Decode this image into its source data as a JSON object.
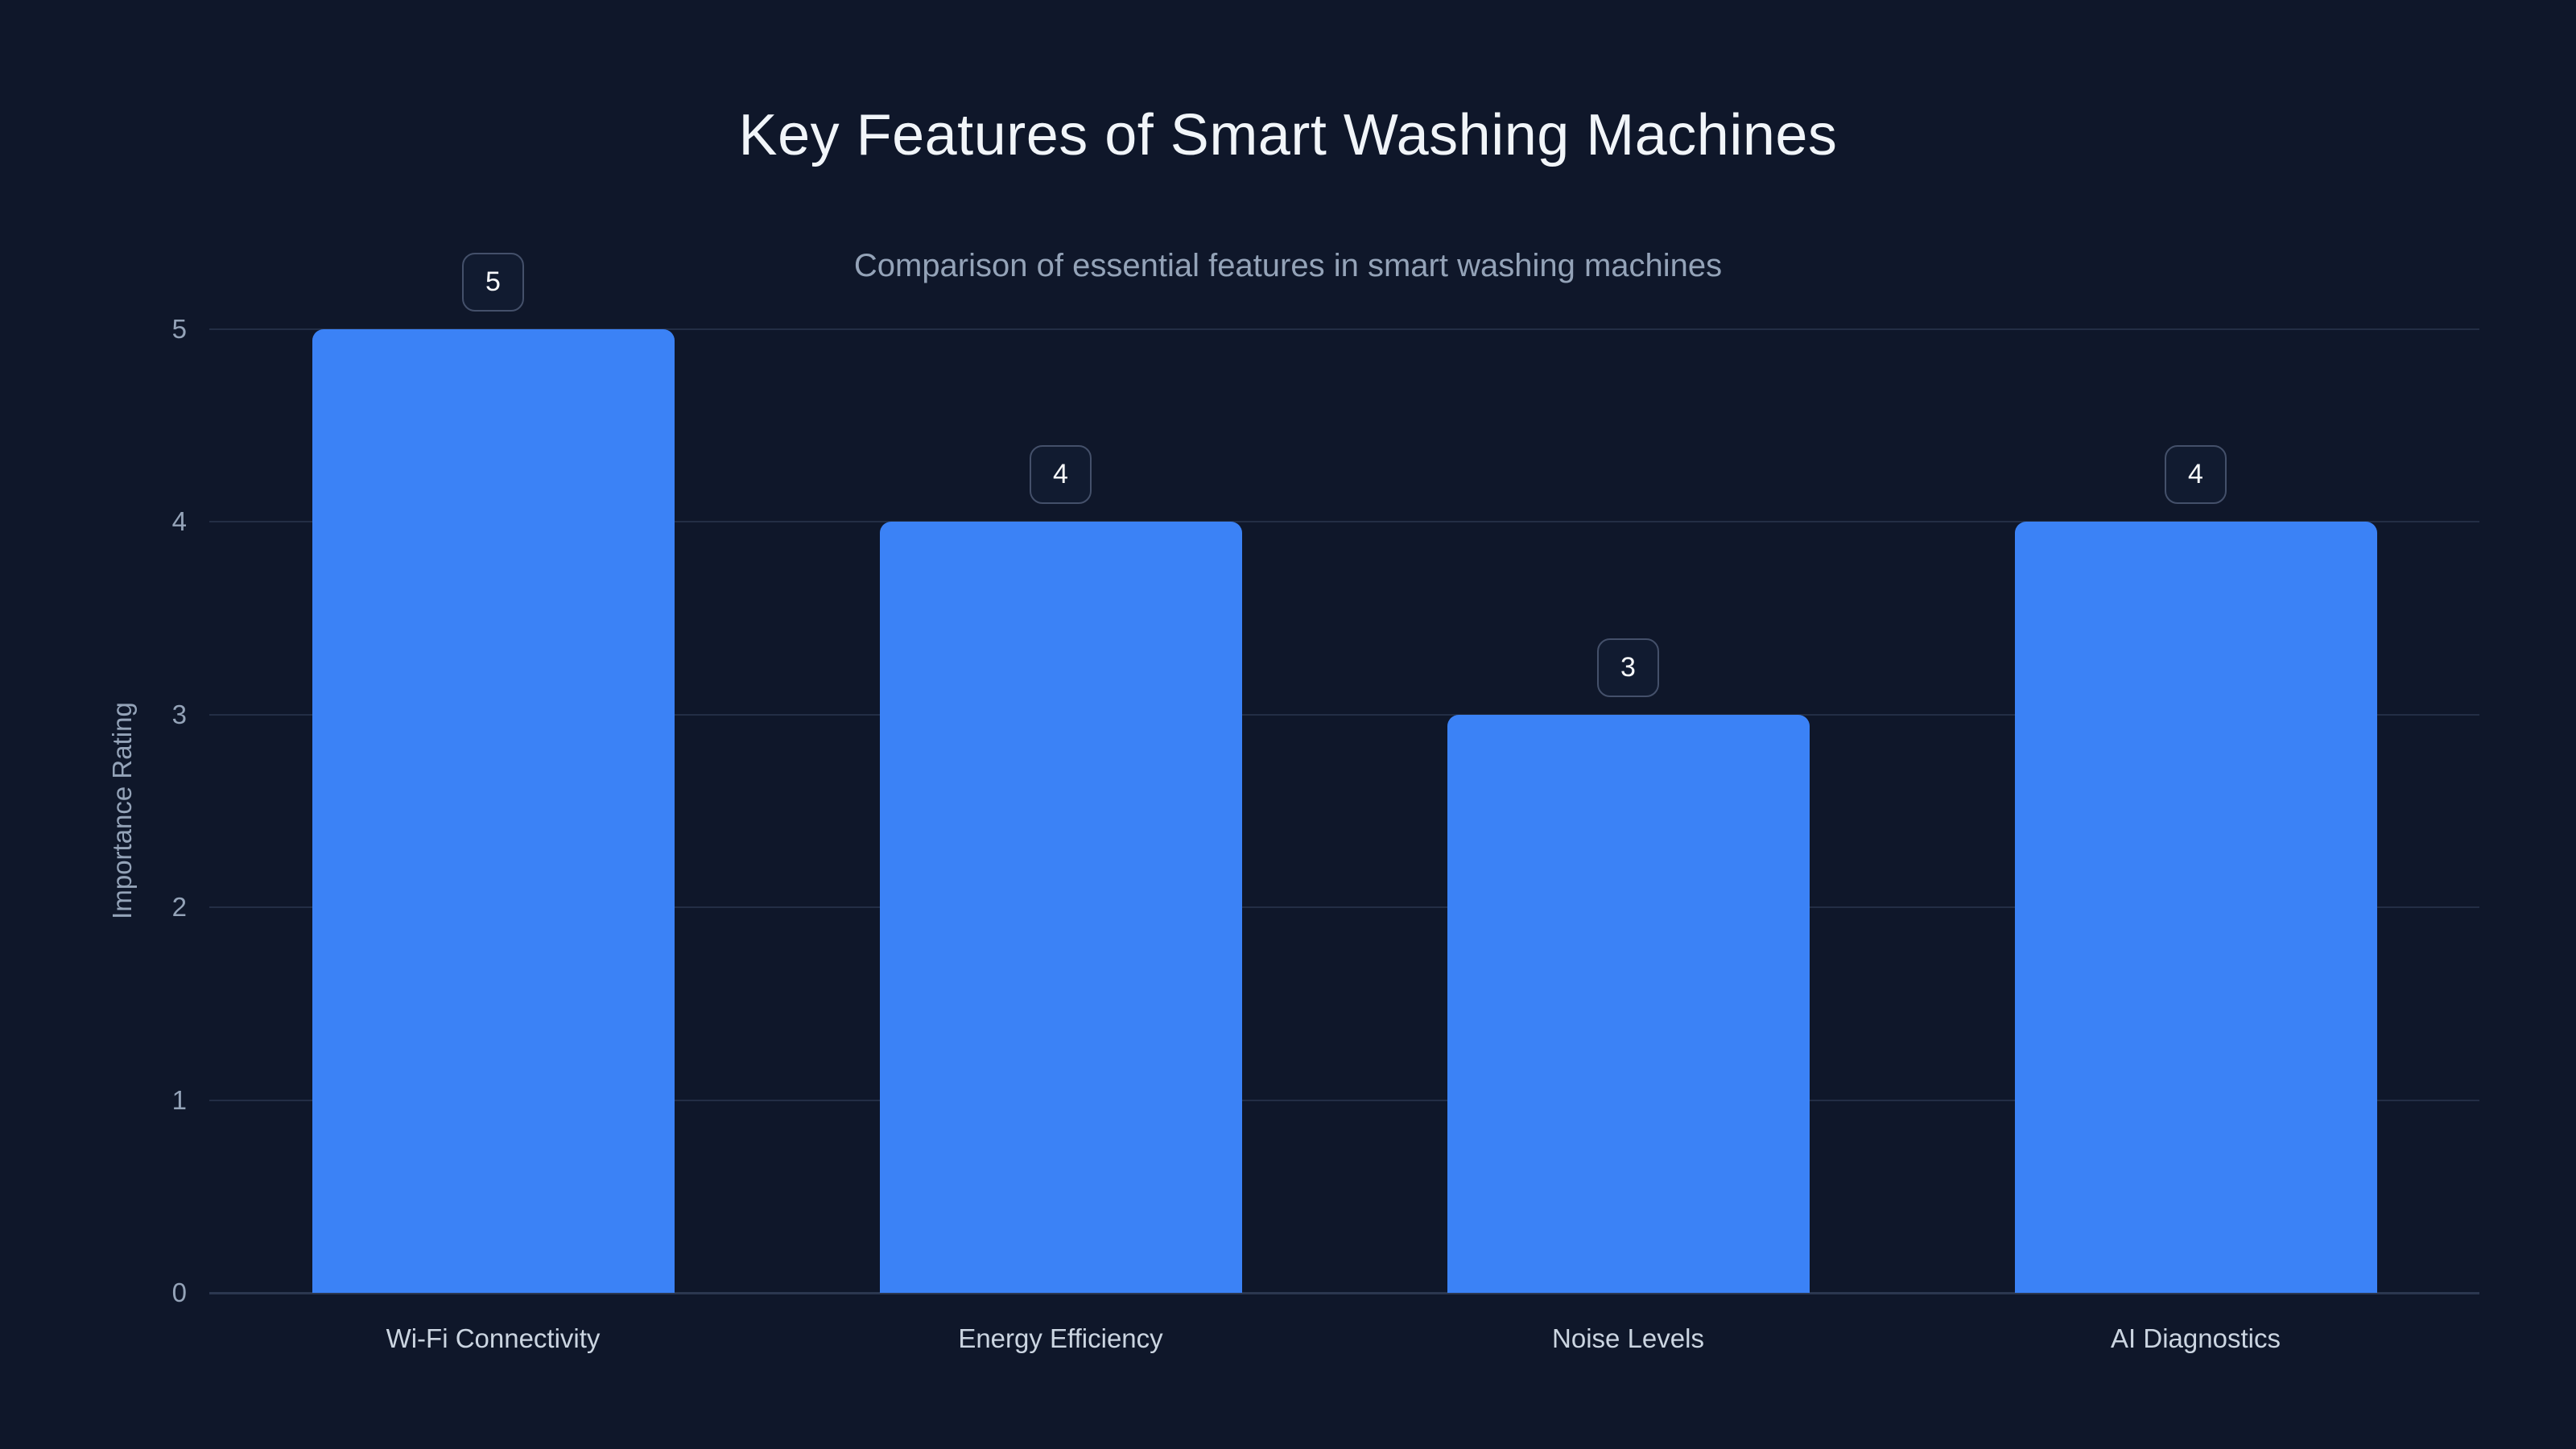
{
  "chart_data": {
    "type": "bar",
    "title": "Key Features of Smart Washing Machines",
    "subtitle": "Comparison of essential features in smart washing machines",
    "categories": [
      "Wi-Fi Connectivity",
      "Energy Efficiency",
      "Noise Levels",
      "AI Diagnostics"
    ],
    "values": [
      5,
      4,
      3,
      4
    ],
    "value_labels": [
      "5",
      "4",
      "3",
      "4"
    ],
    "xlabel": "",
    "ylabel": "Importance Rating",
    "ylim": [
      0,
      5
    ],
    "yticks": [
      0,
      1,
      2,
      3,
      4,
      5
    ],
    "grid": true,
    "legend": false,
    "legend_position": "none",
    "colors": {
      "bar": "#3b82f6",
      "background": "#0f172a",
      "grid_line": "#232e45",
      "axis_line": "#2b3750",
      "title_text": "#f1f5f9",
      "subtitle_text": "#94a3b8",
      "tick_text": "#94a3b8",
      "category_text": "#cbd5e1",
      "value_box_border": "#44506a",
      "value_box_background": "#111b30",
      "value_box_text": "#f8fafc"
    }
  }
}
